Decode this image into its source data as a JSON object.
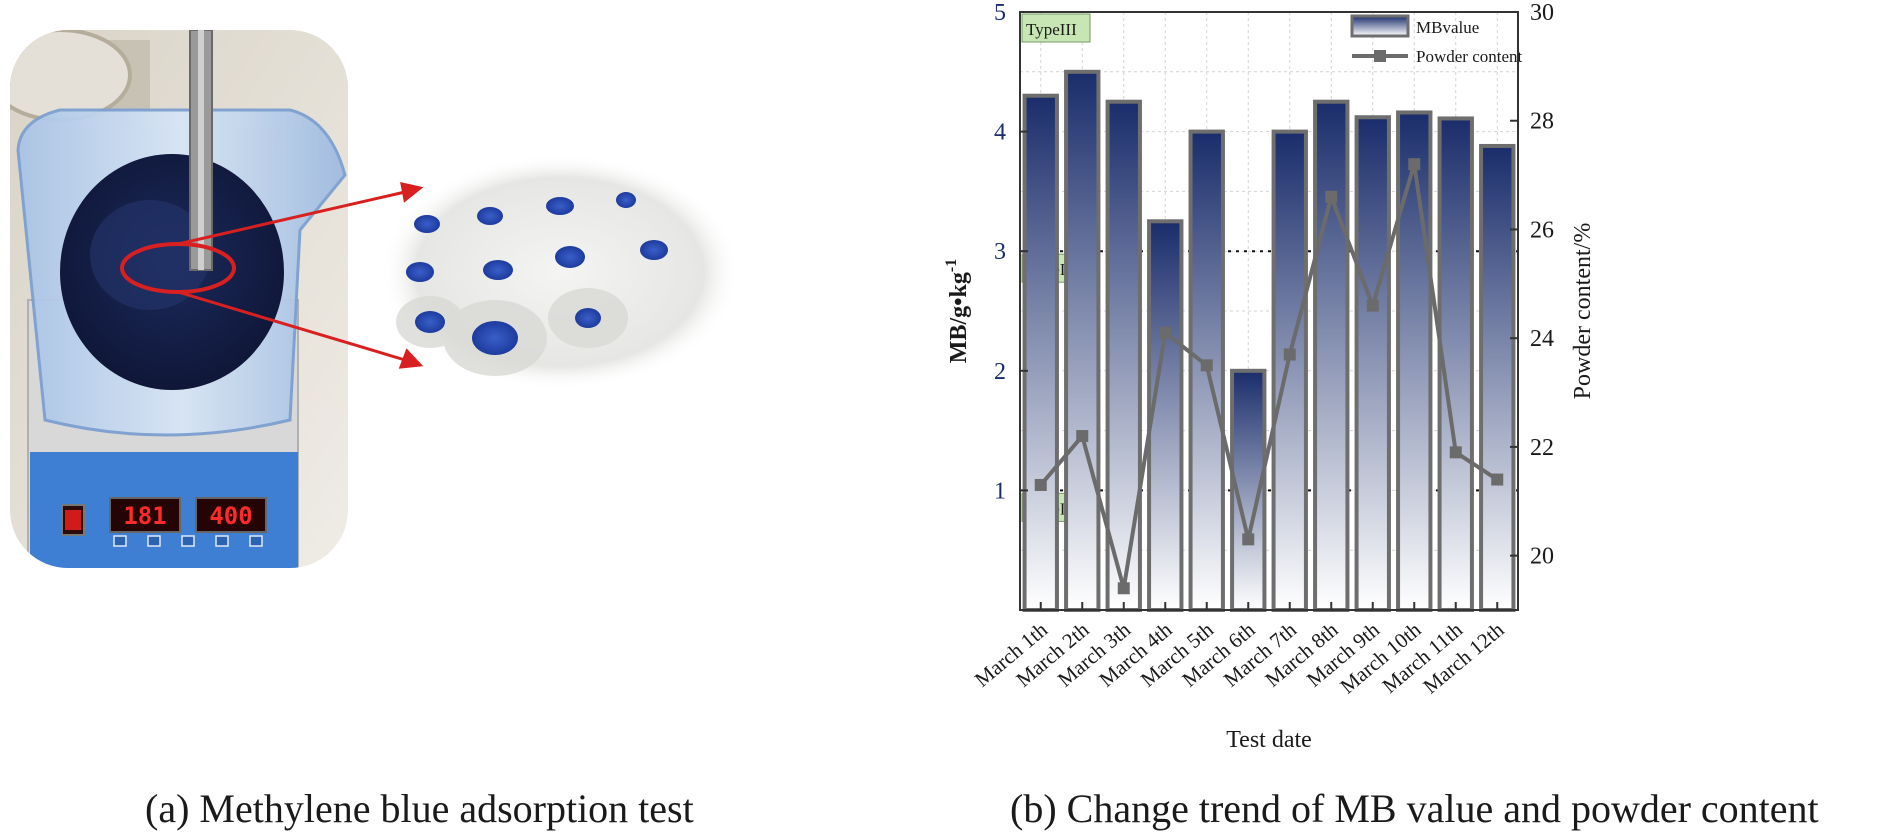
{
  "photo": {
    "stirrer_display_left": "181",
    "stirrer_display_right": "400"
  },
  "captions": {
    "a": "(a) Methylene blue adsorption test",
    "b": "(b) Change trend of MB value and powder content"
  },
  "chart_data": {
    "type": "bar",
    "title": "",
    "xlabel": "Test date",
    "ylabel": "MB/g•kg",
    "ylabel_sup": "-1",
    "y2label": "Powder content/%",
    "categories": [
      "March 1th",
      "March 2th",
      "March 3th",
      "March 4th",
      "March 5th",
      "March 6th",
      "March 7th",
      "March 8th",
      "March 9th",
      "March 10th",
      "March 11th",
      "March 12th"
    ],
    "series": [
      {
        "name": "MBvalue",
        "type": "bar",
        "axis": "left",
        "values": [
          4.3,
          4.5,
          4.25,
          3.25,
          4.0,
          2.0,
          4.0,
          4.25,
          4.12,
          4.16,
          4.11,
          3.88
        ]
      },
      {
        "name": "Powder content",
        "type": "line",
        "axis": "right",
        "values": [
          21.3,
          22.2,
          19.4,
          24.1,
          23.5,
          20.3,
          23.7,
          26.6,
          24.6,
          27.2,
          21.9,
          21.4
        ]
      }
    ],
    "ylim": [
      0,
      5
    ],
    "y_ticks": [
      1,
      2,
      3,
      4,
      5
    ],
    "y2lim": [
      19,
      30
    ],
    "y2_ticks": [
      20,
      22,
      24,
      26,
      28,
      30
    ],
    "thresholds": [
      {
        "value": 1,
        "label": "TypeI"
      },
      {
        "value": 3,
        "label": "TypeII"
      },
      {
        "value": 5,
        "label": "TypeIII"
      }
    ],
    "grid": true,
    "legend_position": "top-right",
    "colors": {
      "bar_top": "#1a2d6b",
      "bar_bottom": "#ffffff",
      "bar_edge": "#6e6e6e",
      "line": "#6b6b6b",
      "type_label_bg": "#c8e6b4",
      "axis_left_text": "#1a2d6b"
    }
  }
}
